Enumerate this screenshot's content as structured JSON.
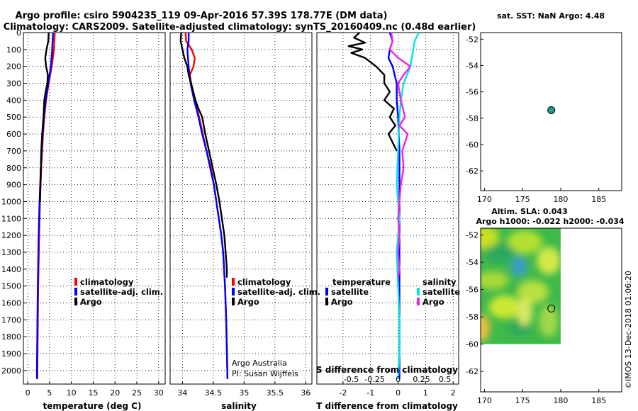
{
  "header": {
    "title_line1": "Argo profile: csiro 5904235_119 09-Apr-2016 57.39S 178.77E (DM data)",
    "title_line2": "Climatology: CARS2009. Satellite-adjusted climatology: synTS_20160409.nc (0.48d earlier)"
  },
  "colors": {
    "climatology": "#ff0000",
    "satellite_adj": "#0000ff",
    "argo": "#000000",
    "sal_sat": "#00e5e5",
    "sal_argo": "#ee22ee",
    "map_point": "#1aa090"
  },
  "chart_data": [
    {
      "id": "temperature",
      "type": "line",
      "xlabel": "temperature (deg C)",
      "ylabel": "pressure",
      "xlim": [
        -1,
        31.5
      ],
      "ylim": [
        2080,
        0
      ],
      "xticks": [
        "0",
        "5",
        "10",
        "15",
        "20",
        "25",
        "30"
      ],
      "xtick_values": [
        0,
        5,
        10,
        15,
        20,
        25,
        30
      ],
      "yticks": [
        "0",
        "100",
        "200",
        "300",
        "400",
        "500",
        "600",
        "700",
        "800",
        "900",
        "1000",
        "1100",
        "1200",
        "1300",
        "1400",
        "1500",
        "1600",
        "1700",
        "1800",
        "1900",
        "2000"
      ],
      "ytick_values": [
        0,
        100,
        200,
        300,
        400,
        500,
        600,
        700,
        800,
        900,
        1000,
        1100,
        1200,
        1300,
        1400,
        1500,
        1600,
        1700,
        1800,
        1900,
        2000
      ],
      "legend": [
        "climatology",
        "satellite-adj. clim.",
        "Argo"
      ],
      "series": [
        {
          "name": "climatology",
          "color": "#ff0000",
          "depth": [
            0,
            100,
            200,
            300,
            400,
            500,
            600,
            800,
            1000,
            1200,
            1500,
            2000,
            2050
          ],
          "values": [
            6.2,
            6.0,
            5.5,
            4.8,
            4.2,
            3.8,
            3.5,
            3.1,
            2.8,
            2.6,
            2.4,
            2.2,
            2.2
          ]
        },
        {
          "name": "satellite-adj. clim.",
          "color": "#0000ff",
          "depth": [
            0,
            100,
            200,
            300,
            400,
            500,
            600,
            800,
            1000,
            1200,
            1500,
            2000,
            2050
          ],
          "values": [
            5.8,
            5.6,
            5.3,
            4.7,
            4.1,
            3.7,
            3.4,
            3.0,
            2.7,
            2.5,
            2.3,
            2.1,
            2.1
          ]
        },
        {
          "name": "Argo",
          "color": "#000000",
          "depth": [
            0,
            50,
            100,
            150,
            200,
            250,
            300,
            350,
            400,
            500,
            600,
            700,
            800,
            1000
          ],
          "values": [
            4.8,
            4.7,
            4.3,
            4.0,
            4.2,
            4.6,
            4.5,
            4.1,
            3.8,
            3.6,
            3.3,
            3.1,
            3.0,
            2.8
          ]
        }
      ]
    },
    {
      "id": "salinity",
      "type": "line",
      "xlabel": "salinity",
      "ylabel": "pressure",
      "xlim": [
        33.8,
        36.1
      ],
      "ylim": [
        2080,
        0
      ],
      "xticks": [
        "34",
        "34.5",
        "35",
        "35.5",
        "36"
      ],
      "xtick_values": [
        34,
        34.5,
        35,
        35.5,
        36
      ],
      "legend": [
        "climatology",
        "satellite-adj. clim.",
        "Argo"
      ],
      "credit_line1": "Argo Australia",
      "credit_line2": "PI: Susan Wijffels",
      "series": [
        {
          "name": "climatology",
          "color": "#ff0000",
          "depth": [
            0,
            50,
            100,
            150,
            200,
            250,
            300,
            400,
            500,
            600,
            700,
            800,
            900,
            1000,
            1100,
            1200,
            1300,
            1500,
            1700,
            2050
          ],
          "values": [
            34.05,
            34.06,
            34.15,
            34.2,
            34.18,
            34.12,
            34.14,
            34.2,
            34.27,
            34.33,
            34.39,
            34.46,
            34.51,
            34.55,
            34.59,
            34.63,
            34.66,
            34.69,
            34.71,
            34.73
          ]
        },
        {
          "name": "satellite-adj. clim.",
          "color": "#0000ff",
          "depth": [
            0,
            50,
            100,
            200,
            300,
            400,
            500,
            600,
            700,
            800,
            900,
            1000,
            1100,
            1200,
            1300,
            1500,
            1700,
            2050
          ],
          "values": [
            34.1,
            34.1,
            34.08,
            34.1,
            34.13,
            34.19,
            34.26,
            34.32,
            34.39,
            34.45,
            34.51,
            34.55,
            34.59,
            34.63,
            34.66,
            34.69,
            34.71,
            34.73
          ]
        },
        {
          "name": "Argo",
          "color": "#000000",
          "depth": [
            0,
            50,
            100,
            150,
            200,
            250,
            300,
            400,
            450,
            500,
            600,
            700,
            800,
            900,
            1000,
            1100,
            1200,
            1300,
            1400,
            1450
          ],
          "values": [
            33.98,
            33.97,
            34.0,
            34.03,
            34.08,
            34.1,
            34.14,
            34.21,
            34.26,
            34.32,
            34.37,
            34.43,
            34.49,
            34.55,
            34.6,
            34.64,
            34.68,
            34.7,
            34.72,
            34.72
          ]
        }
      ]
    },
    {
      "id": "difference",
      "type": "line",
      "xlabel": "T difference from climatology",
      "xlabel2": "S difference from climatology",
      "xlim": [
        -2.95,
        2.2
      ],
      "ylim": [
        2080,
        0
      ],
      "xticks": [
        "-2",
        "-1",
        "0",
        "1",
        "2"
      ],
      "xtick_values": [
        -2,
        -1,
        0,
        1,
        2
      ],
      "xticks_s": [
        "-0.5",
        "-0.25",
        "0",
        "0.25",
        "0.5"
      ],
      "legend_temperature_title": "temperature",
      "legend_salinity_title": "salinity",
      "legend_labels": [
        "satellite",
        "Argo"
      ],
      "series": [
        {
          "name": "temperature satellite",
          "color": "#0000ff",
          "depth": [
            0,
            50,
            100,
            150,
            200,
            300,
            400,
            500,
            700,
            1000,
            1500,
            2000,
            2050
          ],
          "values": [
            -0.3,
            -0.2,
            -0.3,
            -0.35,
            -0.2,
            -0.05,
            -0.05,
            0.0,
            0.05,
            0.05,
            0.05,
            0.05,
            0.05
          ]
        },
        {
          "name": "temperature Argo",
          "color": "#000000",
          "depth": [
            0,
            30,
            60,
            80,
            100,
            120,
            150,
            200,
            250,
            300,
            350,
            400,
            450,
            500,
            550,
            600,
            650,
            700
          ],
          "values": [
            -1.4,
            -1.6,
            -1.2,
            -1.8,
            -1.3,
            -1.7,
            -1.2,
            -0.8,
            -0.5,
            -0.5,
            -0.3,
            -0.5,
            -0.15,
            -0.3,
            -0.1,
            -0.35,
            -0.2,
            -0.05
          ]
        },
        {
          "name": "salinity satellite",
          "color": "#00e5e5",
          "depth": [
            0,
            50,
            100,
            200,
            300,
            400,
            500,
            700,
            900,
            1100,
            1300,
            1500,
            1700,
            1900,
            2050
          ],
          "values": [
            0.75,
            0.6,
            0.55,
            0.45,
            0.2,
            0.1,
            0.05,
            0.0,
            -0.05,
            0.05,
            -0.05,
            0.0,
            0.05,
            0.05,
            0.0
          ]
        },
        {
          "name": "salinity Argo",
          "color": "#ee22ee",
          "depth": [
            0,
            50,
            100,
            150,
            200,
            250,
            300,
            400,
            500,
            550,
            600,
            700,
            800,
            900,
            1000,
            1100,
            1200,
            1300,
            1400,
            1450
          ],
          "values": [
            -0.25,
            -0.2,
            -0.3,
            0.0,
            0.45,
            0.2,
            0.0,
            0.1,
            0.25,
            0.05,
            0.35,
            0.15,
            0.2,
            0.1,
            0.05,
            0.0,
            0.05,
            0.0,
            0.05,
            0.0
          ]
        }
      ]
    },
    {
      "id": "sst_map",
      "type": "scatter",
      "title": "sat. SST: NaN Argo: 4.48",
      "xlim": [
        169.5,
        188
      ],
      "ylim": [
        -63.5,
        -51.5
      ],
      "xticks": [
        "170",
        "175",
        "180",
        "185"
      ],
      "xtick_values": [
        170,
        175,
        180,
        185
      ],
      "yticks": [
        "-52",
        "-54",
        "-56",
        "-58",
        "-60",
        "-62"
      ],
      "ytick_values": [
        -52,
        -54,
        -56,
        -58,
        -60,
        -62
      ],
      "point": {
        "lon": 178.77,
        "lat": -57.39
      }
    },
    {
      "id": "sla_map",
      "type": "heatmap",
      "title_line1": "Altim. SLA: 0.043",
      "title_line2": "Argo h1000: -0.022 h2000: -0.034",
      "xlim": [
        169.5,
        188
      ],
      "ylim": [
        -63.5,
        -51.5
      ],
      "xticks": [
        "170",
        "175",
        "180",
        "185"
      ],
      "xtick_values": [
        170,
        175,
        180,
        185
      ],
      "yticks": [
        "-52",
        "-54",
        "-56",
        "-58",
        "-60",
        "-62"
      ],
      "ytick_values": [
        -52,
        -54,
        -56,
        -58,
        -60,
        -62
      ],
      "field_extent": {
        "lon": [
          169.5,
          180
        ],
        "lat": [
          -60,
          -51.5
        ]
      },
      "point": {
        "lon": 178.77,
        "lat": -57.39
      }
    }
  ],
  "footer": {
    "credit": "©IMOS 13-Dec-2018 01:06:20"
  }
}
